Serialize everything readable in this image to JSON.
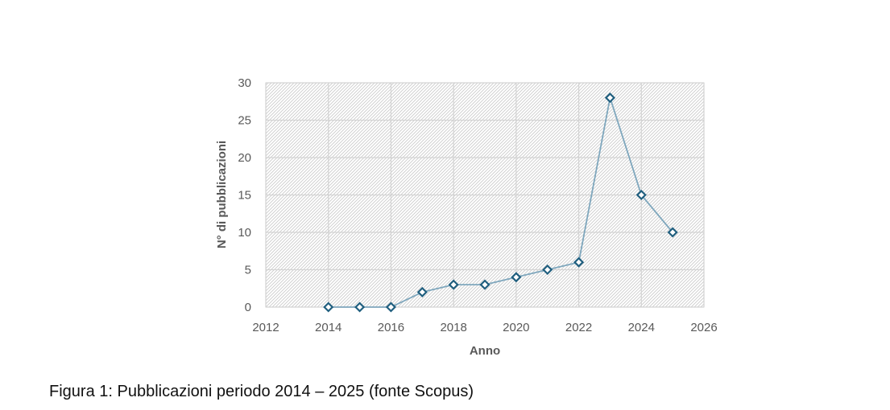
{
  "chart_data": {
    "type": "scatter",
    "title": "",
    "xlabel": "Anno",
    "ylabel": "N° di pubblicazioni",
    "xlim": [
      2012,
      2026
    ],
    "ylim": [
      0,
      30
    ],
    "xticks": [
      2012,
      2014,
      2016,
      2018,
      2020,
      2022,
      2024,
      2026
    ],
    "yticks": [
      0,
      5,
      10,
      15,
      20,
      25,
      30
    ],
    "grid": true,
    "legend": "none",
    "series": [
      {
        "x": [
          2014,
          2015,
          2016,
          2017,
          2018,
          2019,
          2020,
          2021,
          2022,
          2023,
          2024,
          2025
        ],
        "y": [
          0,
          0,
          0,
          2,
          3,
          3,
          4,
          5,
          6,
          28,
          15,
          10
        ],
        "marker": "diamond",
        "line": "straight",
        "color": "#1f5e7e",
        "line_color": "#7fa7bd"
      }
    ]
  },
  "caption": "Figura 1: Pubblicazioni periodo 2014 – 2025 (fonte Scopus)"
}
